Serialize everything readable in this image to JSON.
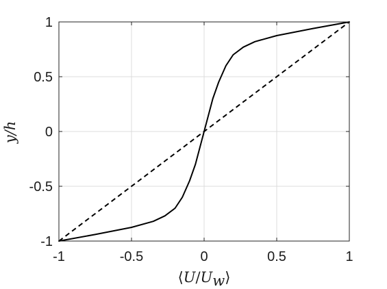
{
  "chart_data": {
    "type": "line",
    "title": "",
    "xlabel": "⟨U/U_w⟩",
    "ylabel": "y/h",
    "xlim": [
      -1,
      1
    ],
    "ylim": [
      -1,
      1
    ],
    "grid": true,
    "xticks": [
      -1,
      -0.5,
      0,
      0.5,
      1
    ],
    "xtick_labels": [
      "-1",
      "-0.5",
      "0",
      "0.5",
      "1"
    ],
    "yticks": [
      -1,
      -0.5,
      0,
      0.5,
      1
    ],
    "ytick_labels": [
      "-1",
      "-0.5",
      "0",
      "0.5",
      "1"
    ],
    "series": [
      {
        "style": "solid",
        "color": "#000000",
        "points": [
          [
            -1,
            -1
          ],
          [
            -0.75,
            -0.94
          ],
          [
            -0.5,
            -0.875
          ],
          [
            -0.35,
            -0.82
          ],
          [
            -0.27,
            -0.77
          ],
          [
            -0.2,
            -0.7
          ],
          [
            -0.15,
            -0.6
          ],
          [
            -0.1,
            -0.45
          ],
          [
            -0.06,
            -0.3
          ],
          [
            -0.03,
            -0.15
          ],
          [
            0,
            0
          ],
          [
            0.03,
            0.15
          ],
          [
            0.06,
            0.3
          ],
          [
            0.1,
            0.45
          ],
          [
            0.15,
            0.6
          ],
          [
            0.2,
            0.7
          ],
          [
            0.27,
            0.77
          ],
          [
            0.35,
            0.82
          ],
          [
            0.5,
            0.875
          ],
          [
            0.75,
            0.94
          ],
          [
            1,
            1
          ]
        ]
      },
      {
        "style": "dashed",
        "color": "#000000",
        "points": [
          [
            -1,
            -1
          ],
          [
            1,
            1
          ]
        ]
      }
    ]
  }
}
